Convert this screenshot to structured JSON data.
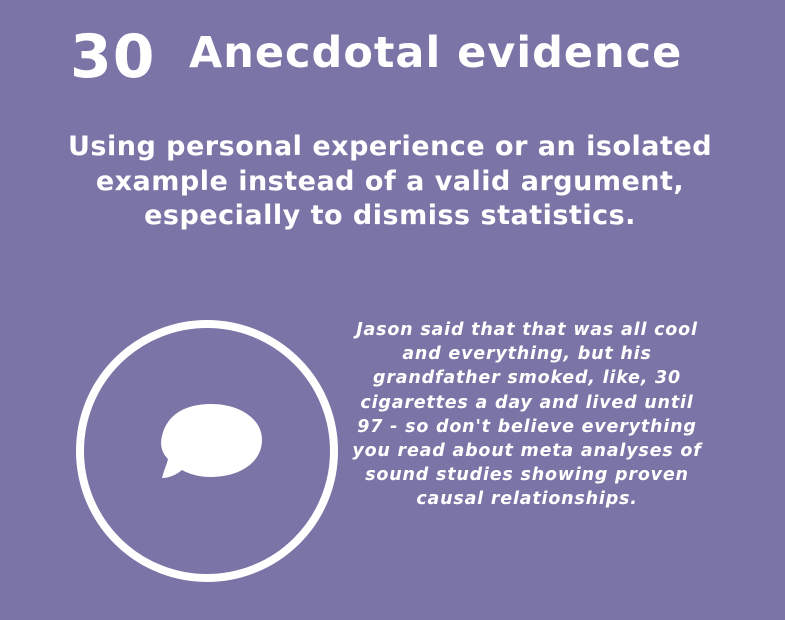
{
  "card": {
    "number": "30",
    "title": "Anecdotal evidence",
    "definition": "Using personal experience or an isolated example instead of a valid argument, especially to dismiss statistics.",
    "example": "Jason said that that was all cool and everything, but his grandfather smoked, like, 30 cigarettes a day and lived until 97 - so don't believe everything you read about meta analyses of sound studies showing proven causal relationships.",
    "icon": "speech-bubble-icon"
  },
  "colors": {
    "background": "#7a75a6",
    "foreground": "#ffffff"
  }
}
